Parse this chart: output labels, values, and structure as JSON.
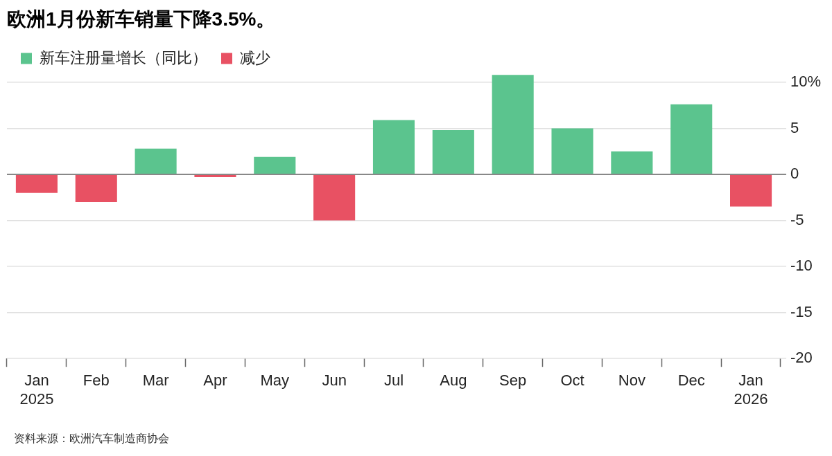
{
  "chart_data": {
    "type": "bar",
    "title": "欧洲1月份新车销量下降3.5%。",
    "categories": [
      "Jan\n2025",
      "Feb",
      "Mar",
      "Apr",
      "May",
      "Jun",
      "Jul",
      "Aug",
      "Sep",
      "Oct",
      "Nov",
      "Dec",
      "Jan\n2026"
    ],
    "series": [
      {
        "name": "新车注册量增长（同比）",
        "color": "#5bc48e",
        "values": [
          null,
          null,
          2.8,
          null,
          1.9,
          null,
          5.9,
          4.8,
          10.8,
          5.0,
          2.5,
          7.6,
          null
        ]
      },
      {
        "name": "减少",
        "color": "#e85163",
        "values": [
          -2.0,
          -3.0,
          null,
          -0.3,
          null,
          -5.0,
          null,
          null,
          null,
          null,
          null,
          null,
          -3.5
        ]
      }
    ],
    "ylim": [
      -20,
      11
    ],
    "yticks": [
      {
        "value": 10,
        "label": "10%"
      },
      5,
      0,
      -5,
      -10,
      -15,
      -20
    ],
    "grid": "y",
    "legend": "top left",
    "annotations": [
      "资料来源：欧洲汽车制造商协会"
    ]
  }
}
